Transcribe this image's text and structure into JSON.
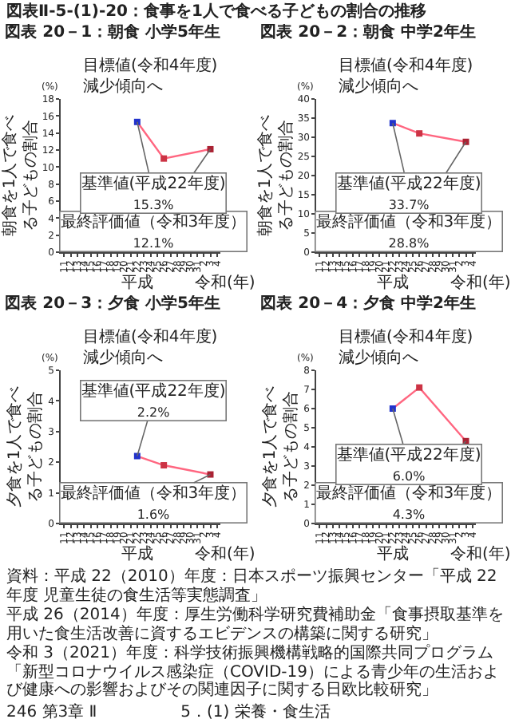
{
  "chart_data": [
    {
      "type": "line",
      "title": "図表 20－1：朝食 小学5年生",
      "ylabel": "朝食を1人で食べる子どもの割合",
      "categories": [
        "11",
        "12",
        "13",
        "14",
        "15",
        "16",
        "17",
        "18",
        "19",
        "20",
        "21",
        "22",
        "23",
        "24",
        "25",
        "26",
        "27",
        "28",
        "29",
        "30",
        "31",
        "2",
        "3",
        "4"
      ],
      "ylim": [
        0,
        18
      ],
      "yticks": [
        0,
        2,
        4,
        6,
        8,
        10,
        12,
        14,
        16,
        18
      ],
      "marker": "square",
      "grid": false,
      "series": [
        {
          "color": "#ff6680",
          "colors": [
            null,
            null,
            null,
            null,
            null,
            null,
            null,
            null,
            null,
            null,
            null,
            "#2233cc",
            null,
            null,
            null,
            "#cc3344",
            null,
            null,
            null,
            null,
            null,
            null,
            "#aa2233",
            null
          ],
          "values": [
            null,
            null,
            null,
            null,
            null,
            null,
            null,
            null,
            null,
            null,
            null,
            15.3,
            null,
            null,
            null,
            11,
            null,
            null,
            null,
            null,
            null,
            null,
            12.1,
            null
          ]
        }
      ],
      "annotations": [
        "(%)",
        "(年)",
        "目標値(令和4年度)\n減少傾向へ",
        "平成",
        "令和",
        {
          "text": "基準値(平成22年度)\n15.3%",
          "x": "22",
          "y": 15.3
        },
        {
          "text": "最終評価値（令和3年度）\n12.1%",
          "x": "3",
          "y": 12.1
        },
        "図表Ⅱ-5-(1)-20：食事を1人で食べる子どもの割合の推移"
      ]
    },
    {
      "type": "line",
      "title": "図表 20－2：朝食 中学2年生",
      "ylabel": "朝食を1人で食べる子どもの割合",
      "categories": [
        "11",
        "12",
        "13",
        "14",
        "15",
        "16",
        "17",
        "18",
        "19",
        "20",
        "21",
        "22",
        "23",
        "24",
        "25",
        "26",
        "27",
        "28",
        "29",
        "30",
        "31",
        "2",
        "3",
        "4"
      ],
      "ylim": [
        0,
        40
      ],
      "yticks": [
        0,
        5,
        10,
        15,
        20,
        25,
        30,
        35,
        40
      ],
      "marker": "square",
      "grid": false,
      "series": [
        {
          "color": "#ff6680",
          "colors": [
            null,
            null,
            null,
            null,
            null,
            null,
            null,
            null,
            null,
            null,
            null,
            "#2233cc",
            null,
            null,
            null,
            "#cc3344",
            null,
            null,
            null,
            null,
            null,
            null,
            "#aa2233",
            null
          ],
          "values": [
            null,
            null,
            null,
            null,
            null,
            null,
            null,
            null,
            null,
            null,
            null,
            33.7,
            null,
            null,
            null,
            31,
            null,
            null,
            null,
            null,
            null,
            null,
            28.8,
            null
          ]
        }
      ],
      "annotations": [
        "(%)",
        "(年)",
        "目標値(令和4年度)\n減少傾向へ",
        "平成",
        "令和",
        {
          "text": "基準値(平成22年度)\n33.7%",
          "x": "22",
          "y": 33.7
        },
        {
          "text": "最終評価値（令和3年度）\n28.8%",
          "x": "3",
          "y": 28.8
        }
      ]
    },
    {
      "type": "line",
      "title": "図表 20－3：夕食 小学5年生",
      "ylabel": "夕食を1人で食べる子どもの割合",
      "categories": [
        "11",
        "12",
        "13",
        "14",
        "15",
        "16",
        "17",
        "18",
        "19",
        "20",
        "21",
        "22",
        "23",
        "24",
        "25",
        "26",
        "27",
        "28",
        "29",
        "30",
        "31",
        "2",
        "3",
        "4"
      ],
      "ylim": [
        0,
        5
      ],
      "yticks": [
        0,
        1,
        2,
        3,
        4,
        5
      ],
      "marker": "square",
      "grid": false,
      "series": [
        {
          "color": "#ff6680",
          "colors": [
            null,
            null,
            null,
            null,
            null,
            null,
            null,
            null,
            null,
            null,
            null,
            "#2233cc",
            null,
            null,
            null,
            "#cc3344",
            null,
            null,
            null,
            null,
            null,
            null,
            "#aa2233",
            null
          ],
          "values": [
            null,
            null,
            null,
            null,
            null,
            null,
            null,
            null,
            null,
            null,
            null,
            2.2,
            null,
            null,
            null,
            1.9,
            null,
            null,
            null,
            null,
            null,
            null,
            1.6,
            null
          ]
        }
      ],
      "annotations": [
        "(%)",
        "(年)",
        "目標値(令和4年度)\n減少傾向へ",
        "平成",
        "令和",
        {
          "text": "基準値(平成22年度)\n2.2%",
          "x": "22",
          "y": 2.2
        },
        {
          "text": "最終評価値（令和3年度）\n1.6%",
          "x": "3",
          "y": 1.6
        }
      ]
    },
    {
      "type": "line",
      "title": "図表 20－4：夕食 中学2年生",
      "ylabel": "夕食を1人で食べる子どもの割合",
      "categories": [
        "11",
        "12",
        "13",
        "14",
        "15",
        "16",
        "17",
        "18",
        "19",
        "20",
        "21",
        "22",
        "23",
        "24",
        "25",
        "26",
        "27",
        "28",
        "29",
        "30",
        "31",
        "2",
        "3",
        "4"
      ],
      "ylim": [
        0,
        8
      ],
      "yticks": [
        0,
        1,
        2,
        3,
        4,
        5,
        6,
        7,
        8
      ],
      "marker": "square",
      "grid": false,
      "series": [
        {
          "color": "#ff6680",
          "colors": [
            null,
            null,
            null,
            null,
            null,
            null,
            null,
            null,
            null,
            null,
            null,
            "#2233cc",
            null,
            null,
            null,
            "#cc3344",
            null,
            null,
            null,
            null,
            null,
            null,
            "#aa2233",
            null
          ],
          "values": [
            null,
            null,
            null,
            null,
            null,
            null,
            null,
            null,
            null,
            null,
            null,
            6.0,
            null,
            null,
            null,
            7.1,
            null,
            null,
            null,
            null,
            null,
            null,
            4.3,
            null
          ]
        }
      ],
      "annotations": [
        "(%)",
        "(年)",
        "目標値(令和4年度)\n減少傾向へ",
        "平成",
        "令和",
        {
          "text": "基準値(平成22年度)\n6.0%",
          "x": "22",
          "y": 6.0
        },
        {
          "text": "最終評価値（令和3年度）\n4.3%",
          "x": "3",
          "y": 4.3
        },
        "資料：平成 22（2010）年度：日本スポーツ振興センター「平成 22 年度 児童生徒の食生活等実態調査」",
        "平成 26（2014）年度：厚生労働科学研究費補助金「食事摂取基準を用いた食生活改善に資するエビデンスの構築に関する研究」",
        "令和 3（2021）年度：科学技術振興機構戦略的国際共同プログラム「新型コロナウイルス感染症（COVID-19）による青少年の生活および健康への影響およびその関連因子に関する日欧比較研究」",
        "5．(1) 栄養・食生活",
        "246 第3章 Ⅱ"
      ]
    }
  ]
}
